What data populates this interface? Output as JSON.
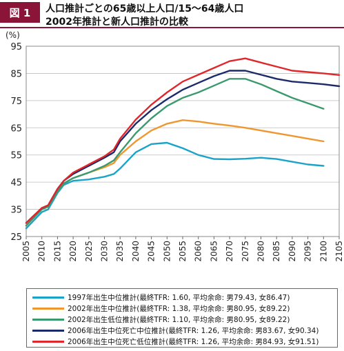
{
  "header": {
    "badge": "図 1",
    "title_line1": "人口推計ごとの65歳以上人口/15～64歳人口",
    "title_line2": "2002年推計と新人口推計の比較",
    "accent_color": "#8a1538"
  },
  "chart_data": {
    "type": "line",
    "ylabel": "(%)",
    "ylim": [
      25,
      95
    ],
    "yticks": [
      25,
      35,
      45,
      55,
      65,
      75,
      85,
      95
    ],
    "xlim": [
      2005,
      2105
    ],
    "xticks": [
      2005,
      2010,
      2015,
      2020,
      2025,
      2030,
      2035,
      2040,
      2045,
      2050,
      2055,
      2060,
      2065,
      2070,
      2075,
      2080,
      2085,
      2090,
      2095,
      2100,
      2105
    ],
    "grid": "horizontal",
    "legend_position": "bottom",
    "series": [
      {
        "name": "1997年出生中位推計(最終TFR: 1.60, 平均余命: 男79.43, 女86.47)",
        "color": "#1aa3c8",
        "x": [
          2005,
          2010,
          2012,
          2015,
          2017,
          2020,
          2025,
          2030,
          2033,
          2035,
          2040,
          2045,
          2050,
          2055,
          2060,
          2065,
          2070,
          2075,
          2080,
          2085,
          2090,
          2095,
          2100
        ],
        "y": [
          28,
          34,
          35,
          41,
          44,
          45.5,
          46,
          47,
          48,
          50,
          56,
          59,
          59.5,
          57.5,
          55,
          53.5,
          53.4,
          53.6,
          54,
          53.5,
          52.5,
          51.5,
          51
        ]
      },
      {
        "name": "2002年出生中位推計(最終TFR: 1.38, 平均余命: 男80.95, 女89.22)",
        "color": "#f0962e",
        "x": [
          2005,
          2010,
          2012,
          2015,
          2017,
          2020,
          2025,
          2030,
          2033,
          2035,
          2040,
          2045,
          2050,
          2055,
          2060,
          2065,
          2070,
          2075,
          2080,
          2085,
          2090,
          2095,
          2100
        ],
        "y": [
          29,
          35,
          36,
          41.5,
          44.5,
          46.5,
          48.5,
          50.5,
          52,
          55,
          60,
          64,
          66.5,
          67.8,
          67.3,
          66.5,
          65.8,
          65,
          64,
          63,
          62,
          61,
          60
        ]
      },
      {
        "name": "2002年出生低位推計(最終TFR: 1.10, 平均余命: 男80.95, 女89.22)",
        "color": "#3a9a6e",
        "x": [
          2005,
          2010,
          2012,
          2015,
          2017,
          2020,
          2025,
          2030,
          2033,
          2035,
          2040,
          2045,
          2050,
          2055,
          2060,
          2065,
          2070,
          2075,
          2080,
          2085,
          2090,
          2095,
          2100
        ],
        "y": [
          29,
          35,
          36,
          41.5,
          44.5,
          46.5,
          48.5,
          51,
          53,
          56,
          63,
          68.5,
          73,
          76,
          78,
          80.5,
          83,
          83,
          81,
          78.5,
          76,
          74,
          72
        ]
      },
      {
        "name": "2006年出生中位死亡中位推計(最終TFR: 1.26, 平均余命: 男83.67, 女90.34)",
        "color": "#1b2a6b",
        "x": [
          2005,
          2010,
          2012,
          2015,
          2017,
          2020,
          2025,
          2030,
          2033,
          2035,
          2040,
          2045,
          2050,
          2055,
          2060,
          2065,
          2070,
          2075,
          2080,
          2085,
          2090,
          2095,
          2100,
          2105
        ],
        "y": [
          30,
          35.5,
          36.5,
          42.5,
          45.5,
          48,
          51,
          54,
          56,
          60,
          66.5,
          71.5,
          75.5,
          79,
          81.5,
          84,
          86,
          86,
          84.5,
          83,
          82,
          81.5,
          81,
          80.3
        ]
      },
      {
        "name": "2006年出生中位死亡低位推計(最終TFR: 1.26, 平均余命: 男84.93, 女91.51)",
        "color": "#e0262a",
        "x": [
          2005,
          2010,
          2012,
          2015,
          2017,
          2020,
          2025,
          2030,
          2033,
          2035,
          2040,
          2045,
          2050,
          2055,
          2060,
          2065,
          2070,
          2075,
          2080,
          2085,
          2090,
          2095,
          2100,
          2105
        ],
        "y": [
          30,
          35.5,
          36.5,
          42.5,
          45.5,
          48.5,
          51.5,
          54.5,
          57,
          61,
          68,
          73.5,
          78,
          82,
          84.5,
          87,
          89.5,
          90.5,
          89,
          87.5,
          86,
          85.5,
          85,
          84.4
        ]
      }
    ]
  }
}
